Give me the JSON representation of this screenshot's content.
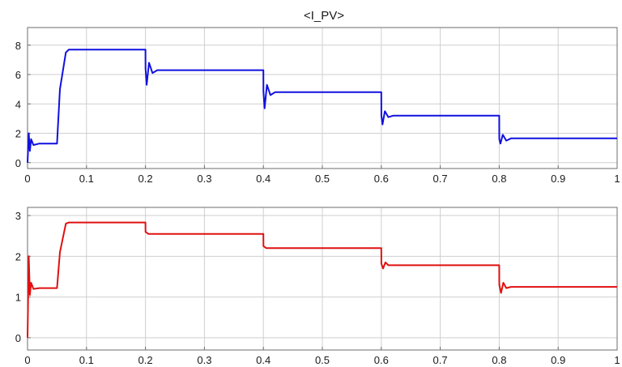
{
  "chart_data": [
    {
      "type": "line",
      "title": "<I_PV>",
      "xlim": [
        0,
        1
      ],
      "ylim": [
        -0.4,
        9.2
      ],
      "xticks": [
        0,
        0.1,
        0.2,
        0.3,
        0.4,
        0.5,
        0.6,
        0.7,
        0.8,
        0.9,
        1
      ],
      "xtick_labels": [
        "0",
        "0.1",
        "0.2",
        "0.3",
        "0.4",
        "0.5",
        "0.6",
        "0.7",
        "0.8",
        "0.9",
        "1"
      ],
      "yticks": [
        0,
        2,
        4,
        6,
        8
      ],
      "ytick_labels": [
        "0",
        "2",
        "4",
        "6",
        "8"
      ],
      "grid": true,
      "series": [
        {
          "color": "#1010e0",
          "x": [
            0,
            0.002,
            0.004,
            0.006,
            0.01,
            0.02,
            0.05,
            0.055,
            0.065,
            0.07,
            0.2,
            0.2001,
            0.202,
            0.206,
            0.212,
            0.22,
            0.4,
            0.4001,
            0.402,
            0.406,
            0.412,
            0.42,
            0.6,
            0.6001,
            0.602,
            0.606,
            0.612,
            0.62,
            0.8,
            0.8001,
            0.802,
            0.806,
            0.812,
            0.82,
            1.0
          ],
          "y": [
            0,
            2.0,
            0.8,
            1.6,
            1.2,
            1.3,
            1.3,
            5.0,
            7.5,
            7.7,
            7.7,
            6.4,
            5.3,
            6.8,
            6.1,
            6.3,
            6.3,
            4.8,
            3.7,
            5.3,
            4.6,
            4.8,
            4.8,
            3.2,
            2.6,
            3.5,
            3.1,
            3.2,
            3.2,
            1.6,
            1.3,
            1.9,
            1.5,
            1.65,
            1.65
          ]
        }
      ]
    },
    {
      "type": "line",
      "title": "",
      "xlim": [
        0,
        1
      ],
      "ylim": [
        -0.3,
        3.2
      ],
      "xticks": [
        0,
        0.1,
        0.2,
        0.3,
        0.4,
        0.5,
        0.6,
        0.7,
        0.8,
        0.9,
        1
      ],
      "xtick_labels": [
        "0",
        "0.1",
        "0.2",
        "0.3",
        "0.4",
        "0.5",
        "0.6",
        "0.7",
        "0.8",
        "0.9",
        "1"
      ],
      "yticks": [
        0,
        1,
        2,
        3
      ],
      "ytick_labels": [
        "0",
        "1",
        "2",
        "3"
      ],
      "grid": true,
      "series": [
        {
          "color": "#e01010",
          "x": [
            0,
            0.002,
            0.004,
            0.006,
            0.01,
            0.02,
            0.05,
            0.055,
            0.065,
            0.07,
            0.2,
            0.2001,
            0.205,
            0.4,
            0.4001,
            0.405,
            0.6,
            0.6001,
            0.603,
            0.607,
            0.612,
            0.8,
            0.8001,
            0.803,
            0.807,
            0.812,
            0.82,
            1.0
          ],
          "y": [
            0,
            2.0,
            1.05,
            1.35,
            1.2,
            1.22,
            1.22,
            2.1,
            2.8,
            2.83,
            2.83,
            2.6,
            2.55,
            2.55,
            2.25,
            2.2,
            2.2,
            1.82,
            1.7,
            1.85,
            1.78,
            1.78,
            1.3,
            1.1,
            1.35,
            1.22,
            1.25,
            1.25
          ]
        }
      ]
    }
  ]
}
